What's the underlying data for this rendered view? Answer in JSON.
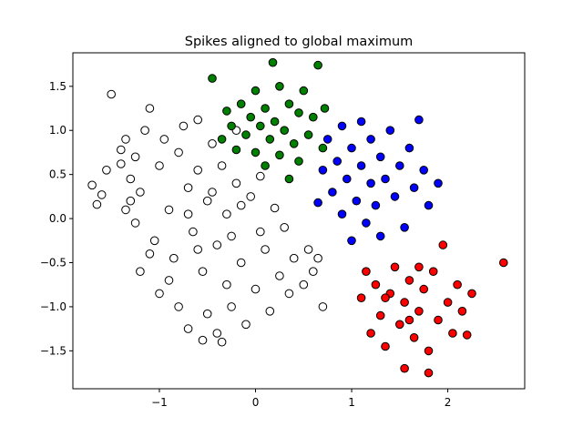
{
  "chart_data": {
    "type": "scatter",
    "title": "Spikes aligned to global maximum",
    "xlabel": "",
    "ylabel": "",
    "xlim": [
      -1.9,
      2.8
    ],
    "ylim": [
      -1.93,
      1.88
    ],
    "xticks": [
      -1,
      0,
      1,
      2
    ],
    "xtick_labels": [
      "−1",
      "0",
      "1",
      "2"
    ],
    "yticks": [
      -1.5,
      -1.0,
      -0.5,
      0.0,
      0.5,
      1.0,
      1.5
    ],
    "ytick_labels": [
      "−1.5",
      "−1.0",
      "−0.5",
      "0.0",
      "0.5",
      "1.0",
      "1.5"
    ],
    "grid": false,
    "legend": "none",
    "series": [
      {
        "color": "#ffffff",
        "points": [
          [
            -1.7,
            0.38
          ],
          [
            -1.65,
            0.16
          ],
          [
            -1.6,
            0.27
          ],
          [
            -1.5,
            1.41
          ],
          [
            -1.4,
            0.62
          ],
          [
            -1.4,
            0.78
          ],
          [
            -1.35,
            0.1
          ],
          [
            -1.3,
            0.45
          ],
          [
            -1.25,
            -0.05
          ],
          [
            -1.2,
            0.3
          ],
          [
            -1.2,
            -0.6
          ],
          [
            -1.15,
            1.0
          ],
          [
            -1.1,
            1.25
          ],
          [
            -1.05,
            -0.25
          ],
          [
            -1.0,
            0.6
          ],
          [
            -1.0,
            -0.85
          ],
          [
            -0.95,
            0.9
          ],
          [
            -0.9,
            0.1
          ],
          [
            -0.85,
            -0.45
          ],
          [
            -0.8,
            0.75
          ],
          [
            -0.8,
            -1.0
          ],
          [
            -0.75,
            1.05
          ],
          [
            -0.7,
            0.35
          ],
          [
            -0.7,
            -1.25
          ],
          [
            -0.65,
            -0.15
          ],
          [
            -0.6,
            1.12
          ],
          [
            -0.6,
            0.55
          ],
          [
            -0.55,
            -0.6
          ],
          [
            -0.5,
            0.2
          ],
          [
            -0.5,
            -1.08
          ],
          [
            -0.45,
            0.85
          ],
          [
            -0.4,
            -0.3
          ],
          [
            -0.4,
            -1.3
          ],
          [
            -0.35,
            0.6
          ],
          [
            -0.3,
            -0.75
          ],
          [
            -0.3,
            0.05
          ],
          [
            -0.25,
            -1.0
          ],
          [
            -0.2,
            0.4
          ],
          [
            -0.15,
            -0.5
          ],
          [
            -0.1,
            -1.2
          ],
          [
            -0.05,
            0.25
          ],
          [
            0.0,
            -0.8
          ],
          [
            0.05,
            0.48
          ],
          [
            0.1,
            -0.35
          ],
          [
            0.15,
            -1.05
          ],
          [
            0.2,
            0.12
          ],
          [
            0.25,
            -0.65
          ],
          [
            0.3,
            -0.1
          ],
          [
            0.35,
            -0.85
          ],
          [
            0.4,
            -0.45
          ],
          [
            0.5,
            -0.75
          ],
          [
            0.55,
            -0.35
          ],
          [
            0.6,
            -0.6
          ],
          [
            0.65,
            -0.45
          ],
          [
            0.7,
            -1.0
          ],
          [
            -0.55,
            -1.38
          ],
          [
            -0.35,
            -1.4
          ],
          [
            -1.35,
            0.9
          ],
          [
            -0.2,
            1.0
          ],
          [
            -1.55,
            0.55
          ],
          [
            -1.1,
            -0.4
          ],
          [
            -0.9,
            -0.7
          ],
          [
            -0.7,
            0.05
          ],
          [
            -0.6,
            -0.35
          ],
          [
            -0.45,
            0.3
          ],
          [
            -0.25,
            -0.2
          ],
          [
            0.05,
            -0.15
          ],
          [
            -0.15,
            0.15
          ],
          [
            -1.25,
            0.7
          ],
          [
            -1.3,
            0.2
          ]
        ]
      },
      {
        "color": "#008000",
        "points": [
          [
            -0.45,
            1.59
          ],
          [
            -0.35,
            0.9
          ],
          [
            -0.3,
            1.22
          ],
          [
            -0.25,
            1.05
          ],
          [
            -0.2,
            0.78
          ],
          [
            -0.15,
            1.3
          ],
          [
            -0.1,
            0.95
          ],
          [
            -0.05,
            1.15
          ],
          [
            0.0,
            1.45
          ],
          [
            0.0,
            0.75
          ],
          [
            0.05,
            1.05
          ],
          [
            0.1,
            0.6
          ],
          [
            0.1,
            1.25
          ],
          [
            0.15,
            0.9
          ],
          [
            0.18,
            1.77
          ],
          [
            0.2,
            1.1
          ],
          [
            0.25,
            1.5
          ],
          [
            0.25,
            0.72
          ],
          [
            0.3,
            1.0
          ],
          [
            0.35,
            1.3
          ],
          [
            0.35,
            0.45
          ],
          [
            0.4,
            0.85
          ],
          [
            0.45,
            1.2
          ],
          [
            0.45,
            0.65
          ],
          [
            0.5,
            1.45
          ],
          [
            0.55,
            0.95
          ],
          [
            0.6,
            1.15
          ],
          [
            0.65,
            1.74
          ],
          [
            0.7,
            0.8
          ],
          [
            0.72,
            1.25
          ]
        ]
      },
      {
        "color": "#0000ff",
        "points": [
          [
            0.65,
            0.18
          ],
          [
            0.7,
            0.55
          ],
          [
            0.75,
            0.9
          ],
          [
            0.8,
            0.3
          ],
          [
            0.85,
            0.65
          ],
          [
            0.9,
            0.05
          ],
          [
            0.9,
            1.05
          ],
          [
            0.95,
            0.45
          ],
          [
            1.0,
            0.8
          ],
          [
            1.0,
            -0.25
          ],
          [
            1.05,
            0.2
          ],
          [
            1.1,
            0.6
          ],
          [
            1.1,
            1.1
          ],
          [
            1.15,
            -0.05
          ],
          [
            1.2,
            0.4
          ],
          [
            1.2,
            0.9
          ],
          [
            1.25,
            0.15
          ],
          [
            1.3,
            0.7
          ],
          [
            1.3,
            -0.2
          ],
          [
            1.35,
            0.45
          ],
          [
            1.4,
            1.0
          ],
          [
            1.45,
            0.25
          ],
          [
            1.5,
            0.6
          ],
          [
            1.55,
            -0.1
          ],
          [
            1.6,
            0.8
          ],
          [
            1.65,
            0.35
          ],
          [
            1.7,
            1.12
          ],
          [
            1.75,
            0.55
          ],
          [
            1.8,
            0.15
          ],
          [
            1.9,
            0.4
          ]
        ]
      },
      {
        "color": "#ff0000",
        "points": [
          [
            1.15,
            -0.6
          ],
          [
            1.1,
            -0.9
          ],
          [
            1.2,
            -1.3
          ],
          [
            1.25,
            -0.75
          ],
          [
            1.3,
            -1.1
          ],
          [
            1.35,
            -1.45
          ],
          [
            1.4,
            -0.85
          ],
          [
            1.45,
            -0.55
          ],
          [
            1.5,
            -1.2
          ],
          [
            1.55,
            -0.95
          ],
          [
            1.55,
            -1.7
          ],
          [
            1.6,
            -0.7
          ],
          [
            1.65,
            -1.35
          ],
          [
            1.7,
            -1.05
          ],
          [
            1.75,
            -0.8
          ],
          [
            1.8,
            -1.5
          ],
          [
            1.8,
            -1.75
          ],
          [
            1.85,
            -0.6
          ],
          [
            1.9,
            -1.15
          ],
          [
            1.95,
            -0.3
          ],
          [
            2.0,
            -0.95
          ],
          [
            2.05,
            -1.3
          ],
          [
            2.1,
            -0.75
          ],
          [
            2.15,
            -1.05
          ],
          [
            2.2,
            -1.32
          ],
          [
            2.25,
            -0.85
          ],
          [
            2.58,
            -0.5
          ],
          [
            1.35,
            -0.9
          ],
          [
            1.6,
            -1.15
          ],
          [
            1.7,
            -0.55
          ]
        ]
      }
    ]
  }
}
